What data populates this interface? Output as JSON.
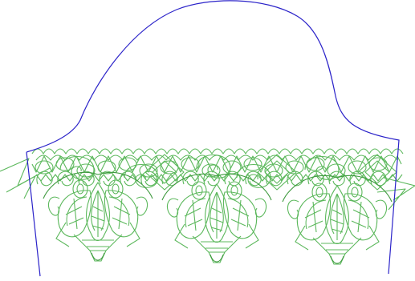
{
  "colors": {
    "background": "#ffffff",
    "sleeve_outline": "#2b23c9",
    "lace": "#5cb85c",
    "lace_dark": "#3f9a3f"
  },
  "icons": {
    "sleeve": "sleeve-pattern-outline",
    "lace": "lace-embroidery-motif"
  },
  "motif_count": 3
}
